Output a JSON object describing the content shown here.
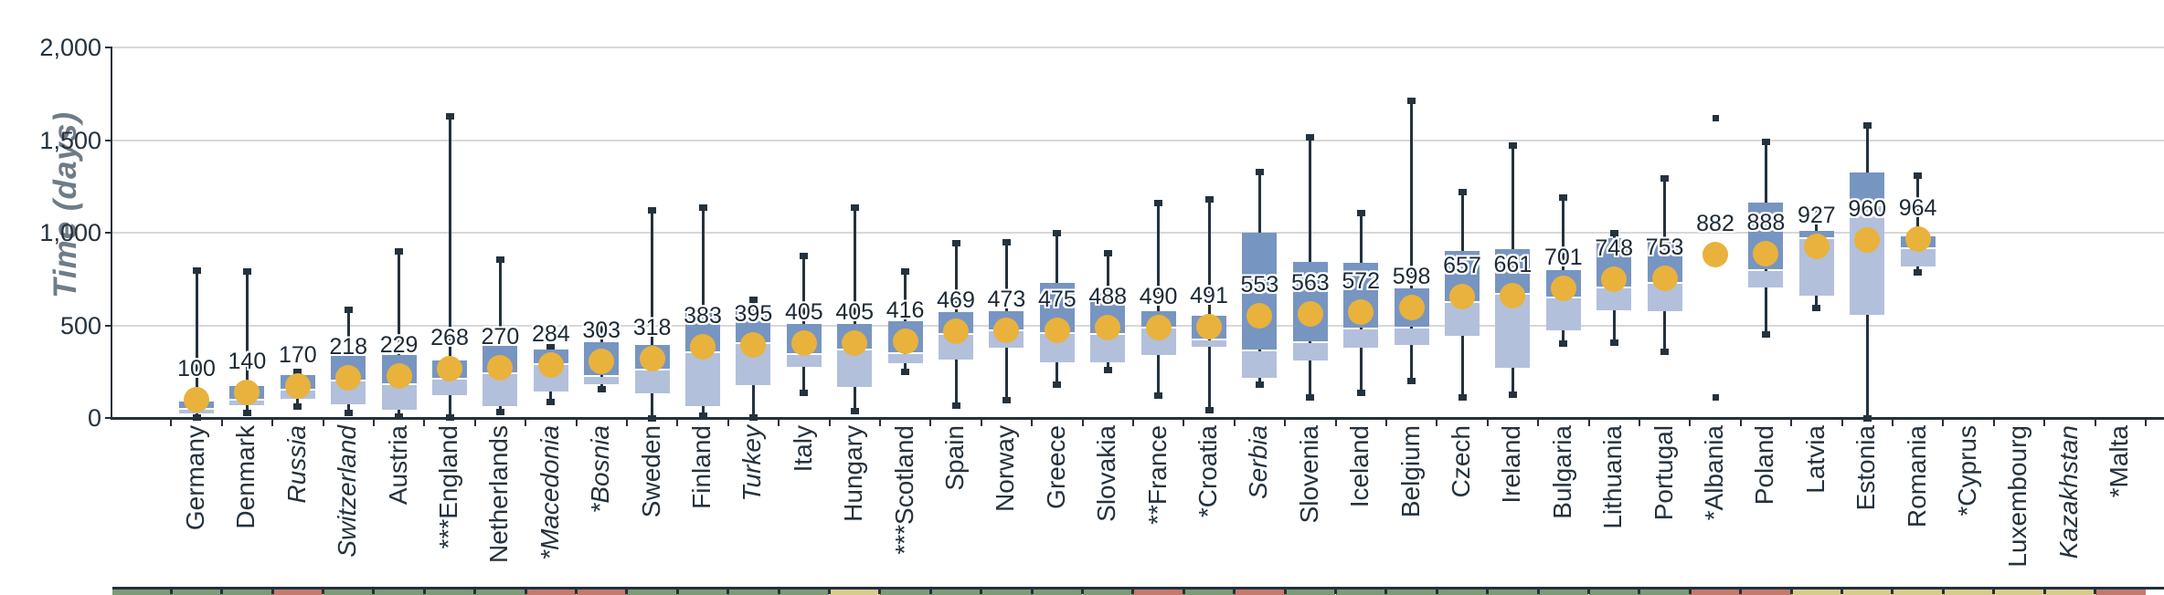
{
  "y_axis": {
    "title": "Time (days)",
    "tick_labels": [
      "0",
      "500",
      "1,000",
      "1,500",
      "2,000"
    ],
    "tick_values": [
      0,
      500,
      1000,
      1500,
      2000
    ]
  },
  "colors": {
    "box_dark": "#7795c1",
    "box_light": "#b2c0dc",
    "mean_dot": "#e9b23c",
    "axis_dark": "#22313d",
    "gridline": "#d8d8d8",
    "y_title": "#6e7c87",
    "strip_green": "#7e9b78",
    "strip_salmon": "#c37b6d",
    "strip_yellow": "#d6cc8c"
  },
  "chart_data": {
    "type": "box",
    "ylabel": "Time (days)",
    "ylim": [
      0,
      2000
    ],
    "gridlines": [
      500,
      1000,
      1500,
      2000
    ],
    "grid": true,
    "legend_position": "none",
    "mean_marker": "orange-dot",
    "series": [
      {
        "name": "Germany",
        "label": "100",
        "mean": 100,
        "q1": 25,
        "median": 50,
        "q3": 90,
        "whisker_low": 5,
        "whisker_high": 800,
        "outliers": [],
        "italic": false,
        "strip_color": "green"
      },
      {
        "name": "Denmark",
        "label": "140",
        "mean": 140,
        "q1": 70,
        "median": 100,
        "q3": 170,
        "whisker_low": 30,
        "whisker_high": 795,
        "outliers": [],
        "italic": false,
        "strip_color": "green"
      },
      {
        "name": "Russia",
        "label": "170",
        "mean": 170,
        "q1": 105,
        "median": 155,
        "q3": 230,
        "whisker_low": 65,
        "whisker_high": 250,
        "outliers": [],
        "italic": true,
        "strip_color": "salmon"
      },
      {
        "name": "Switzerland",
        "label": "218",
        "mean": 218,
        "q1": 75,
        "median": 200,
        "q3": 335,
        "whisker_low": 30,
        "whisker_high": 585,
        "outliers": [],
        "italic": true,
        "strip_color": "green"
      },
      {
        "name": "Austria",
        "label": "229",
        "mean": 229,
        "q1": 45,
        "median": 180,
        "q3": 340,
        "whisker_low": 10,
        "whisker_high": 900,
        "outliers": [],
        "italic": false,
        "strip_color": "green"
      },
      {
        "name": "***England",
        "label": "268",
        "mean": 268,
        "q1": 125,
        "median": 210,
        "q3": 310,
        "whisker_low": 5,
        "whisker_high": 1630,
        "outliers": [],
        "italic": false,
        "strip_color": "green"
      },
      {
        "name": "Netherlands",
        "label": "270",
        "mean": 270,
        "q1": 65,
        "median": 240,
        "q3": 390,
        "whisker_low": 35,
        "whisker_high": 855,
        "outliers": [],
        "italic": false,
        "strip_color": "green"
      },
      {
        "name": "*Macedonia",
        "label": "284",
        "mean": 284,
        "q1": 145,
        "median": 290,
        "q3": 370,
        "whisker_low": 90,
        "whisker_high": 385,
        "outliers": [],
        "italic": true,
        "strip_color": "salmon"
      },
      {
        "name": "*Bosnia",
        "label": "303",
        "mean": 303,
        "q1": 180,
        "median": 225,
        "q3": 410,
        "whisker_low": 160,
        "whisker_high": 505,
        "outliers": [],
        "italic": true,
        "strip_color": "salmon"
      },
      {
        "name": "Sweden",
        "label": "318",
        "mean": 318,
        "q1": 135,
        "median": 260,
        "q3": 395,
        "whisker_low": 0,
        "whisker_high": 1125,
        "outliers": [],
        "italic": false,
        "strip_color": "green"
      },
      {
        "name": "Finland",
        "label": "383",
        "mean": 383,
        "q1": 65,
        "median": 355,
        "q3": 590,
        "whisker_low": 15,
        "whisker_high": 1140,
        "outliers": [],
        "italic": false,
        "strip_color": "green"
      },
      {
        "name": "Turkey",
        "label": "395",
        "mean": 395,
        "q1": 175,
        "median": 405,
        "q3": 590,
        "whisker_low": 5,
        "whisker_high": 640,
        "outliers": [],
        "italic": true,
        "strip_color": "green"
      },
      {
        "name": "Italy",
        "label": "405",
        "mean": 405,
        "q1": 275,
        "median": 345,
        "q3": 505,
        "whisker_low": 140,
        "whisker_high": 875,
        "outliers": [],
        "italic": false,
        "strip_color": "green"
      },
      {
        "name": "Hungary",
        "label": "405",
        "mean": 405,
        "q1": 165,
        "median": 370,
        "q3": 505,
        "whisker_low": 40,
        "whisker_high": 1140,
        "outliers": [],
        "italic": false,
        "strip_color": "yellow"
      },
      {
        "name": "***Scotland",
        "label": "416",
        "mean": 416,
        "q1": 295,
        "median": 350,
        "q3": 520,
        "whisker_low": 250,
        "whisker_high": 795,
        "outliers": [],
        "italic": false,
        "strip_color": "green"
      },
      {
        "name": "Spain",
        "label": "469",
        "mean": 469,
        "q1": 315,
        "median": 455,
        "q3": 570,
        "whisker_low": 70,
        "whisker_high": 945,
        "outliers": [],
        "italic": false,
        "strip_color": "green"
      },
      {
        "name": "Norway",
        "label": "473",
        "mean": 473,
        "q1": 380,
        "median": 473,
        "q3": 575,
        "whisker_low": 100,
        "whisker_high": 950,
        "outliers": [],
        "italic": false,
        "strip_color": "green"
      },
      {
        "name": "Greece",
        "label": "475",
        "mean": 475,
        "q1": 300,
        "median": 460,
        "q3": 730,
        "whisker_low": 180,
        "whisker_high": 1000,
        "outliers": [],
        "italic": false,
        "strip_color": "green"
      },
      {
        "name": "Slovakia",
        "label": "488",
        "mean": 488,
        "q1": 300,
        "median": 455,
        "q3": 675,
        "whisker_low": 260,
        "whisker_high": 890,
        "outliers": [],
        "italic": false,
        "strip_color": "green"
      },
      {
        "name": "**France",
        "label": "490",
        "mean": 490,
        "q1": 340,
        "median": 490,
        "q3": 575,
        "whisker_low": 125,
        "whisker_high": 1165,
        "outliers": [],
        "italic": false,
        "strip_color": "salmon"
      },
      {
        "name": "*Croatia",
        "label": "491",
        "mean": 491,
        "q1": 385,
        "median": 425,
        "q3": 550,
        "whisker_low": 45,
        "whisker_high": 1180,
        "outliers": [],
        "italic": false,
        "strip_color": "green"
      },
      {
        "name": "Serbia",
        "label": "553",
        "mean": 553,
        "q1": 215,
        "median": 365,
        "q3": 1000,
        "whisker_low": 180,
        "whisker_high": 1330,
        "outliers": [],
        "italic": true,
        "strip_color": "salmon"
      },
      {
        "name": "Slovenia",
        "label": "563",
        "mean": 563,
        "q1": 310,
        "median": 410,
        "q3": 840,
        "whisker_low": 115,
        "whisker_high": 1515,
        "outliers": [],
        "italic": false,
        "strip_color": "green"
      },
      {
        "name": "Iceland",
        "label": "572",
        "mean": 572,
        "q1": 380,
        "median": 485,
        "q3": 835,
        "whisker_low": 140,
        "whisker_high": 1110,
        "outliers": [],
        "italic": false,
        "strip_color": "green"
      },
      {
        "name": "Belgium",
        "label": "598",
        "mean": 598,
        "q1": 395,
        "median": 490,
        "q3": 700,
        "whisker_low": 200,
        "whisker_high": 1715,
        "outliers": [],
        "italic": false,
        "strip_color": "green"
      },
      {
        "name": "Czech",
        "label": "657",
        "mean": 657,
        "q1": 445,
        "median": 625,
        "q3": 900,
        "whisker_low": 115,
        "whisker_high": 1220,
        "outliers": [],
        "italic": false,
        "strip_color": "green"
      },
      {
        "name": "Ireland",
        "label": "661",
        "mean": 661,
        "q1": 270,
        "median": 670,
        "q3": 910,
        "whisker_low": 130,
        "whisker_high": 1475,
        "outliers": [],
        "italic": false,
        "strip_color": "green"
      },
      {
        "name": "Bulgaria",
        "label": "701",
        "mean": 701,
        "q1": 475,
        "median": 650,
        "q3": 800,
        "whisker_low": 405,
        "whisker_high": 1190,
        "outliers": [],
        "italic": false,
        "strip_color": "green"
      },
      {
        "name": "Lithuania",
        "label": "748",
        "mean": 748,
        "q1": 580,
        "median": 705,
        "q3": 970,
        "whisker_low": 410,
        "whisker_high": 1000,
        "outliers": [],
        "italic": false,
        "strip_color": "green"
      },
      {
        "name": "Portugal",
        "label": "753",
        "mean": 753,
        "q1": 575,
        "median": 730,
        "q3": 950,
        "whisker_low": 360,
        "whisker_high": 1295,
        "outliers": [],
        "italic": false,
        "strip_color": "green"
      },
      {
        "name": "*Albania",
        "label": "882",
        "mean": 882,
        "q1": null,
        "median": null,
        "q3": null,
        "whisker_low": null,
        "whisker_high": null,
        "outliers": [
          1620,
          110
        ],
        "italic": false,
        "strip_color": "salmon"
      },
      {
        "name": "Poland",
        "label": "888",
        "mean": 888,
        "q1": 705,
        "median": 800,
        "q3": 1165,
        "whisker_low": 455,
        "whisker_high": 1495,
        "outliers": [],
        "italic": false,
        "strip_color": "salmon"
      },
      {
        "name": "Latvia",
        "label": "927",
        "mean": 927,
        "q1": 660,
        "median": 970,
        "q3": 1010,
        "whisker_low": 595,
        "whisker_high": 1130,
        "outliers": [],
        "italic": false,
        "strip_color": "yellow"
      },
      {
        "name": "Estonia",
        "label": "960",
        "mean": 960,
        "q1": 555,
        "median": 1150,
        "q3": 1325,
        "whisker_low": 0,
        "whisker_high": 1580,
        "outliers": [],
        "italic": false,
        "strip_color": "yellow"
      },
      {
        "name": "Romania",
        "label": "964",
        "mean": 964,
        "q1": 820,
        "median": 915,
        "q3": 980,
        "whisker_low": 790,
        "whisker_high": 1310,
        "outliers": [],
        "italic": false,
        "strip_color": "yellow"
      },
      {
        "name": "*Cyprus",
        "label": "",
        "mean": null,
        "q1": null,
        "median": null,
        "q3": null,
        "whisker_low": null,
        "whisker_high": null,
        "outliers": [],
        "italic": false,
        "strip_color": "yellow"
      },
      {
        "name": "Luxembourg",
        "label": "",
        "mean": null,
        "q1": null,
        "median": null,
        "q3": null,
        "whisker_low": null,
        "whisker_high": null,
        "outliers": [],
        "italic": false,
        "strip_color": "yellow"
      },
      {
        "name": "Kazakhstan",
        "label": "",
        "mean": null,
        "q1": null,
        "median": null,
        "q3": null,
        "whisker_low": null,
        "whisker_high": null,
        "outliers": [],
        "italic": true,
        "strip_color": "yellow"
      },
      {
        "name": "*Malta",
        "label": "",
        "mean": null,
        "q1": null,
        "median": null,
        "q3": null,
        "whisker_low": null,
        "whisker_high": null,
        "outliers": [],
        "italic": false,
        "strip_color": "salmon"
      }
    ]
  }
}
